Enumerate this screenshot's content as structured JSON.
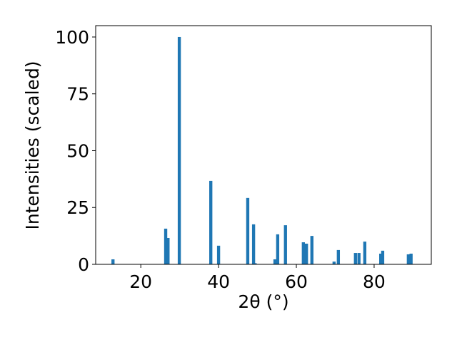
{
  "chart_data": {
    "type": "bar",
    "x_label": "2θ (°)",
    "y_label": "Intensities (scaled)",
    "x": [
      12.85,
      26.4,
      27.0,
      29.9,
      38.0,
      40.0,
      47.5,
      49.0,
      49.4,
      54.5,
      55.2,
      57.2,
      61.8,
      62.6,
      64.0,
      69.7,
      70.8,
      75.2,
      76.1,
      77.6,
      81.7,
      82.2,
      88.8,
      89.5
    ],
    "values": [
      2.2,
      15.7,
      11.6,
      100,
      36.7,
      8.2,
      29.2,
      17.6,
      0.5,
      2.2,
      13.2,
      17.2,
      9.7,
      9.1,
      12.5,
      1.2,
      6.3,
      5.0,
      5.0,
      10.0,
      4.7,
      6.0,
      4.4,
      4.7
    ],
    "bar_width": 0.8,
    "color": "#1f77b4",
    "xlim": [
      8.4,
      94.7
    ],
    "xticks": [
      20,
      40,
      60,
      80
    ],
    "ylim": [
      0,
      105
    ],
    "yticks": [
      0,
      25,
      50,
      75,
      100
    ],
    "grid": false
  }
}
